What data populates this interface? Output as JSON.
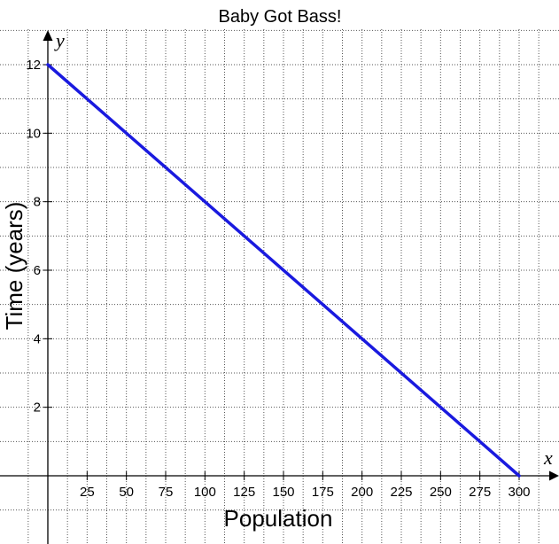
{
  "chart_data": {
    "type": "line",
    "title": "Baby Got Bass!",
    "xlabel": "Population",
    "ylabel": "Time (years)",
    "x_axis_var": "x",
    "y_axis_var": "y",
    "xlim": [
      0,
      300
    ],
    "ylim": [
      0,
      12
    ],
    "x_ticks": [
      25,
      50,
      75,
      100,
      125,
      150,
      175,
      200,
      225,
      250,
      275,
      300
    ],
    "y_ticks": [
      2,
      4,
      6,
      8,
      10,
      12
    ],
    "grid": true,
    "series": [
      {
        "color": "#1a1adf",
        "x": [
          0,
          300
        ],
        "y": [
          12,
          0
        ]
      }
    ]
  }
}
